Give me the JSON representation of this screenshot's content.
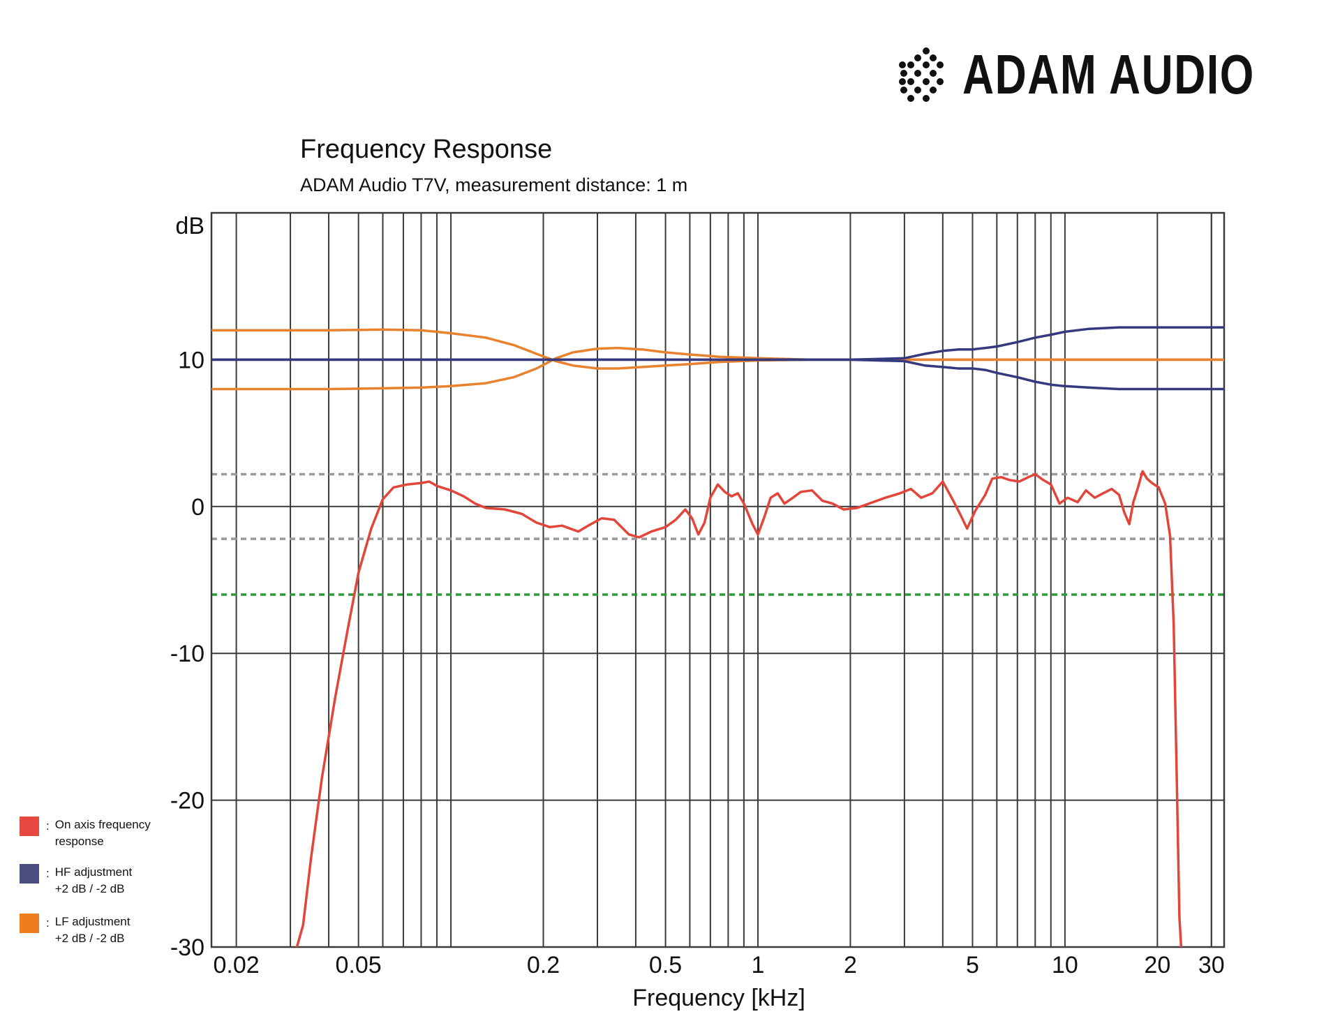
{
  "brand": {
    "name": "ADAM AUDIO",
    "logo_icon": "adam-dots-logo-icon"
  },
  "chart_data": {
    "type": "line",
    "title": "Frequency Response",
    "subtitle": "ADAM Audio T7V, measurement distance: 1 m",
    "xlabel": "Frequency [kHz]",
    "ylabel": "dB",
    "xscale": "log",
    "xlim": [
      0.0166,
      33
    ],
    "ylim": [
      -30,
      20
    ],
    "xticks": [
      {
        "value": 0.02,
        "label": "0.02"
      },
      {
        "value": 0.05,
        "label": "0.05"
      },
      {
        "value": 0.2,
        "label": "0.2"
      },
      {
        "value": 0.5,
        "label": "0.5"
      },
      {
        "value": 1,
        "label": "1"
      },
      {
        "value": 2,
        "label": "2"
      },
      {
        "value": 5,
        "label": "5"
      },
      {
        "value": 10,
        "label": "10"
      },
      {
        "value": 20,
        "label": "20"
      },
      {
        "value": 30,
        "label": "30"
      }
    ],
    "yticks": [
      {
        "value": 10,
        "label": "10"
      },
      {
        "value": 0,
        "label": "0"
      },
      {
        "value": -10,
        "label": "-10"
      },
      {
        "value": -20,
        "label": "-20"
      },
      {
        "value": -30,
        "label": "-30"
      }
    ],
    "grid": true,
    "reference_lines": [
      {
        "y": 2.2,
        "style": "dashed",
        "color": "#999999"
      },
      {
        "y": -2.2,
        "style": "dashed",
        "color": "#999999"
      },
      {
        "y": -6,
        "style": "dashed",
        "color": "#2e9a3a"
      }
    ],
    "series": [
      {
        "name": "On axis frequency response",
        "color": "#e2453a",
        "points": [
          [
            0.0315,
            -30
          ],
          [
            0.033,
            -28.5
          ],
          [
            0.035,
            -24
          ],
          [
            0.038,
            -18.5
          ],
          [
            0.042,
            -13
          ],
          [
            0.046,
            -8.5
          ],
          [
            0.05,
            -4.5
          ],
          [
            0.055,
            -1.5
          ],
          [
            0.06,
            0.5
          ],
          [
            0.065,
            1.3
          ],
          [
            0.072,
            1.5
          ],
          [
            0.08,
            1.6
          ],
          [
            0.085,
            1.7
          ],
          [
            0.09,
            1.4
          ],
          [
            0.1,
            1.1
          ],
          [
            0.11,
            0.7
          ],
          [
            0.12,
            0.2
          ],
          [
            0.13,
            -0.1
          ],
          [
            0.15,
            -0.2
          ],
          [
            0.17,
            -0.5
          ],
          [
            0.19,
            -1.1
          ],
          [
            0.21,
            -1.4
          ],
          [
            0.23,
            -1.3
          ],
          [
            0.26,
            -1.7
          ],
          [
            0.28,
            -1.3
          ],
          [
            0.31,
            -0.8
          ],
          [
            0.34,
            -0.9
          ],
          [
            0.38,
            -1.9
          ],
          [
            0.41,
            -2.1
          ],
          [
            0.45,
            -1.7
          ],
          [
            0.5,
            -1.4
          ],
          [
            0.54,
            -0.9
          ],
          [
            0.58,
            -0.2
          ],
          [
            0.61,
            -0.8
          ],
          [
            0.64,
            -1.9
          ],
          [
            0.67,
            -1.1
          ],
          [
            0.7,
            0.6
          ],
          [
            0.74,
            1.5
          ],
          [
            0.78,
            1.0
          ],
          [
            0.82,
            0.7
          ],
          [
            0.86,
            0.9
          ],
          [
            0.9,
            0.2
          ],
          [
            0.96,
            -1.2
          ],
          [
            1.0,
            -1.9
          ],
          [
            1.05,
            -0.7
          ],
          [
            1.1,
            0.6
          ],
          [
            1.16,
            0.9
          ],
          [
            1.22,
            0.2
          ],
          [
            1.3,
            0.6
          ],
          [
            1.38,
            1.0
          ],
          [
            1.5,
            1.1
          ],
          [
            1.62,
            0.4
          ],
          [
            1.75,
            0.2
          ],
          [
            1.9,
            -0.2
          ],
          [
            2.1,
            -0.1
          ],
          [
            2.3,
            0.2
          ],
          [
            2.6,
            0.6
          ],
          [
            2.9,
            0.9
          ],
          [
            3.15,
            1.2
          ],
          [
            3.4,
            0.6
          ],
          [
            3.7,
            0.9
          ],
          [
            4.0,
            1.7
          ],
          [
            4.3,
            0.5
          ],
          [
            4.55,
            -0.5
          ],
          [
            4.8,
            -1.5
          ],
          [
            5.1,
            -0.3
          ],
          [
            5.5,
            0.8
          ],
          [
            5.8,
            1.9
          ],
          [
            6.2,
            2.0
          ],
          [
            6.6,
            1.8
          ],
          [
            7.1,
            1.7
          ],
          [
            7.6,
            2.0
          ],
          [
            8.0,
            2.2
          ],
          [
            8.5,
            1.8
          ],
          [
            9.0,
            1.5
          ],
          [
            9.6,
            0.2
          ],
          [
            10.2,
            0.6
          ],
          [
            11.0,
            0.3
          ],
          [
            11.7,
            1.1
          ],
          [
            12.5,
            0.6
          ],
          [
            13.3,
            0.9
          ],
          [
            14.2,
            1.2
          ],
          [
            15.0,
            0.8
          ],
          [
            15.6,
            -0.4
          ],
          [
            16.2,
            -1.2
          ],
          [
            16.7,
            0.3
          ],
          [
            17.3,
            1.3
          ],
          [
            17.9,
            2.4
          ],
          [
            18.5,
            1.9
          ],
          [
            19.2,
            1.6
          ],
          [
            20.2,
            1.3
          ],
          [
            21.2,
            0.2
          ],
          [
            22.0,
            -2.0
          ],
          [
            22.6,
            -8
          ],
          [
            23.1,
            -18
          ],
          [
            23.6,
            -28
          ],
          [
            23.9,
            -30
          ]
        ]
      },
      {
        "name": "HF adjustment +2 dB",
        "color": "#353a7e",
        "points": [
          [
            0.0166,
            10
          ],
          [
            0.2,
            10
          ],
          [
            0.5,
            10
          ],
          [
            1,
            10
          ],
          [
            2,
            10
          ],
          [
            3,
            10.1
          ],
          [
            3.5,
            10.4
          ],
          [
            4,
            10.6
          ],
          [
            4.5,
            10.7
          ],
          [
            5,
            10.7
          ],
          [
            5.5,
            10.8
          ],
          [
            6,
            10.9
          ],
          [
            7,
            11.2
          ],
          [
            8,
            11.5
          ],
          [
            9,
            11.7
          ],
          [
            10,
            11.9
          ],
          [
            12,
            12.1
          ],
          [
            15,
            12.2
          ],
          [
            20,
            12.2
          ],
          [
            33,
            12.2
          ]
        ]
      },
      {
        "name": "HF adjustment -2 dB",
        "color": "#353a7e",
        "points": [
          [
            0.0166,
            10
          ],
          [
            0.2,
            10
          ],
          [
            0.5,
            10
          ],
          [
            1,
            10
          ],
          [
            2,
            10
          ],
          [
            3,
            9.9
          ],
          [
            3.5,
            9.6
          ],
          [
            4,
            9.5
          ],
          [
            4.5,
            9.4
          ],
          [
            5,
            9.4
          ],
          [
            5.5,
            9.3
          ],
          [
            6,
            9.1
          ],
          [
            7,
            8.8
          ],
          [
            8,
            8.5
          ],
          [
            9,
            8.3
          ],
          [
            10,
            8.2
          ],
          [
            12,
            8.1
          ],
          [
            15,
            8.0
          ],
          [
            20,
            8.0
          ],
          [
            33,
            8.0
          ]
        ]
      },
      {
        "name": "LF adjustment +2 dB",
        "color": "#e8822e",
        "points": [
          [
            0.0166,
            12
          ],
          [
            0.04,
            12
          ],
          [
            0.06,
            12.05
          ],
          [
            0.08,
            12.0
          ],
          [
            0.1,
            11.8
          ],
          [
            0.13,
            11.5
          ],
          [
            0.16,
            11.0
          ],
          [
            0.19,
            10.4
          ],
          [
            0.22,
            9.9
          ],
          [
            0.25,
            9.6
          ],
          [
            0.3,
            9.4
          ],
          [
            0.35,
            9.4
          ],
          [
            0.42,
            9.5
          ],
          [
            0.5,
            9.6
          ],
          [
            0.6,
            9.7
          ],
          [
            0.75,
            9.85
          ],
          [
            1,
            9.95
          ],
          [
            1.5,
            10.0
          ],
          [
            2,
            10.0
          ],
          [
            33,
            10.0
          ]
        ]
      },
      {
        "name": "LF adjustment -2 dB",
        "color": "#e8822e",
        "points": [
          [
            0.0166,
            8
          ],
          [
            0.04,
            8
          ],
          [
            0.06,
            8.05
          ],
          [
            0.08,
            8.1
          ],
          [
            0.1,
            8.2
          ],
          [
            0.13,
            8.4
          ],
          [
            0.16,
            8.8
          ],
          [
            0.19,
            9.4
          ],
          [
            0.22,
            10.1
          ],
          [
            0.25,
            10.5
          ],
          [
            0.3,
            10.75
          ],
          [
            0.35,
            10.8
          ],
          [
            0.42,
            10.7
          ],
          [
            0.5,
            10.5
          ],
          [
            0.6,
            10.35
          ],
          [
            0.75,
            10.2
          ],
          [
            1,
            10.1
          ],
          [
            1.5,
            10.0
          ],
          [
            2,
            10.0
          ],
          [
            33,
            10.0
          ]
        ]
      }
    ]
  },
  "legend": [
    {
      "color": "#e5493f",
      "text_lines": [
        "On axis frequency",
        "response"
      ]
    },
    {
      "color": "#4a4d80",
      "text_lines": [
        "HF adjustment",
        "+2 dB / -2 dB"
      ]
    },
    {
      "color": "#ef7d1e",
      "text_lines": [
        "LF adjustment",
        "+2 dB / -2 dB"
      ]
    }
  ],
  "legend_separator": ":"
}
